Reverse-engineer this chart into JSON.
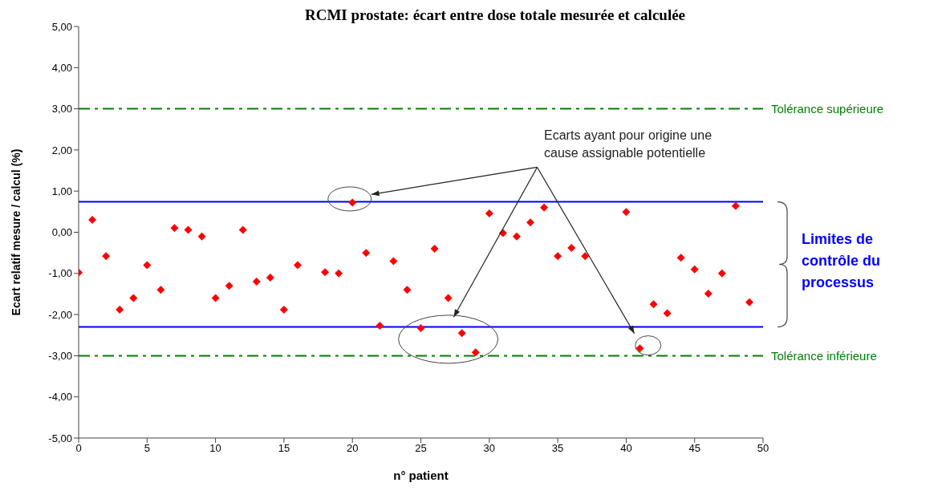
{
  "chart_data": {
    "type": "scatter",
    "title": "RCMI prostate: écart entre dose totale mesurée et calculée",
    "xlabel": "n° patient",
    "ylabel": "Ecart relatif mesure / calcul (%)",
    "x": [
      0,
      1,
      2,
      3,
      4,
      5,
      6,
      7,
      8,
      9,
      10,
      11,
      12,
      13,
      14,
      15,
      16,
      18,
      19,
      20,
      21,
      22,
      23,
      24,
      25,
      26,
      27,
      28,
      29,
      30,
      31,
      32,
      33,
      34,
      35,
      36,
      37,
      40,
      41,
      42,
      43,
      44,
      45,
      46,
      47,
      48,
      49
    ],
    "series": [
      {
        "color": "#ff0000",
        "values": [
          -0.98,
          0.3,
          -0.58,
          -1.88,
          -1.6,
          -0.8,
          -1.4,
          0.1,
          0.06,
          -0.1,
          -1.6,
          -1.3,
          0.06,
          -1.2,
          -1.1,
          -1.88,
          -0.8,
          -0.97,
          -1.0,
          0.72,
          -0.5,
          -2.27,
          -0.7,
          -1.4,
          -2.33,
          -0.4,
          -1.6,
          -2.45,
          -2.92,
          0.46,
          -0.02,
          -0.1,
          0.24,
          0.6,
          -0.58,
          -0.38,
          -0.58,
          0.49,
          -2.82,
          -1.75,
          -1.97,
          -0.62,
          -0.9,
          -1.49,
          -1.0,
          0.64,
          -1.7
        ]
      }
    ],
    "marker": "diamond",
    "grid": false,
    "legend": false,
    "xlim": [
      0,
      50
    ],
    "xticks": [
      0,
      5,
      10,
      15,
      20,
      25,
      30,
      35,
      40,
      45,
      50
    ],
    "ylim": [
      -5,
      5
    ],
    "yticks": [
      {
        "value": -5,
        "label": "-5,00"
      },
      {
        "value": -4,
        "label": "-4,00"
      },
      {
        "value": -3,
        "label": "-3,00"
      },
      {
        "value": -2,
        "label": "-2,00"
      },
      {
        "value": -1,
        "label": "-1,00"
      },
      {
        "value": 0,
        "label": "0,00"
      },
      {
        "value": 1,
        "label": "1,00"
      },
      {
        "value": 2,
        "label": "2,00"
      },
      {
        "value": 3,
        "label": "3,00"
      },
      {
        "value": 4,
        "label": "4,00"
      },
      {
        "value": 5,
        "label": "5,00"
      }
    ],
    "ref_lines": [
      {
        "axis": "y",
        "value": 3,
        "label": "Tolérance supérieure",
        "color": "#008000",
        "line_style": "dashdot"
      },
      {
        "axis": "y",
        "value": -3,
        "label": "Tolérance inférieure",
        "color": "#008000",
        "line_style": "dashdot"
      },
      {
        "axis": "y",
        "value": 0.74,
        "label": null,
        "color": "#0000ff",
        "line_style": "solid"
      },
      {
        "axis": "y",
        "value": -2.3,
        "label": null,
        "color": "#0000ff",
        "line_style": "solid"
      }
    ],
    "annotations": [
      "Ecarts ayant pour origine une cause assignable potentielle",
      "Limites de contrôle du processus"
    ]
  }
}
